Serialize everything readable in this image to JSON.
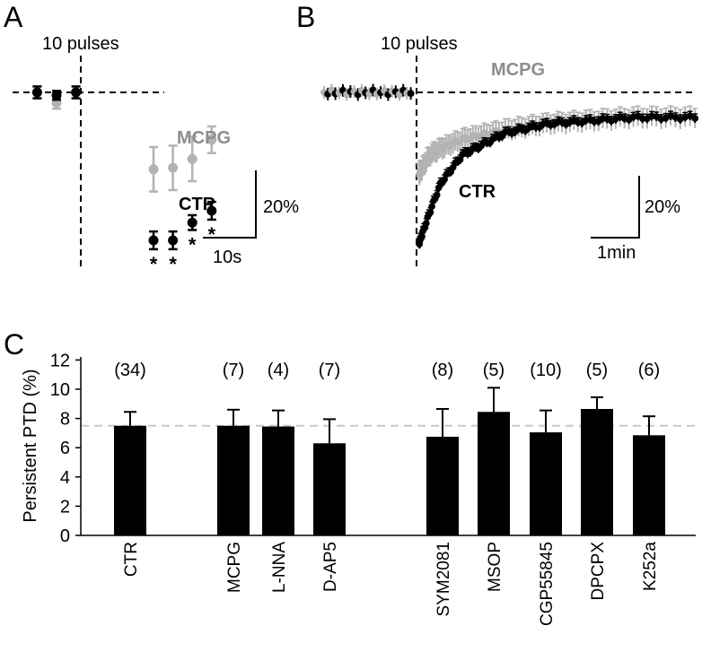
{
  "panel_labels": {
    "a": "A",
    "b": "B",
    "c": "C"
  },
  "colors": {
    "ctr": "#000000",
    "mcpg": "#b3b3b3",
    "mcpg_label": "#8c8c8c",
    "refline": "#c8c8c8"
  },
  "chart_data": [
    {
      "id": "A",
      "type": "scatter",
      "title": "",
      "stim_label": "10 pulses",
      "xlabel": "",
      "ylabel": "",
      "ylim": [
        -55,
        5
      ],
      "baseline": 0,
      "scalebar": {
        "x_label": "10s",
        "y_label": "20%"
      },
      "series": [
        {
          "name": "MCPG",
          "baseline_points": [
            {
              "x": -4.5,
              "y": 0,
              "err": 2
            },
            {
              "x": -2.5,
              "y": -3.5,
              "err": 2
            },
            {
              "x": -0.5,
              "y": 0,
              "err": 2
            }
          ],
          "points": [
            {
              "x": 7.5,
              "y": -26,
              "err": 7.5
            },
            {
              "x": 9.5,
              "y": -25.5,
              "err": 7.5
            },
            {
              "x": 11.5,
              "y": -22.5,
              "err": 7.5
            },
            {
              "x": 13.5,
              "y": -16,
              "err": 4.5
            }
          ]
        },
        {
          "name": "CTR",
          "baseline_points": [
            {
              "x": -4.5,
              "y": 0,
              "err": 2
            },
            {
              "x": -2.5,
              "y": -1,
              "err": 1.5
            },
            {
              "x": -0.5,
              "y": 0,
              "err": 2
            }
          ],
          "points": [
            {
              "x": 7.5,
              "y": -50,
              "err": 3
            },
            {
              "x": 9.5,
              "y": -50,
              "err": 3
            },
            {
              "x": 11.5,
              "y": -44,
              "err": 2.5
            },
            {
              "x": 13.5,
              "y": -40,
              "err": 3
            }
          ]
        }
      ],
      "significance_marks": [
        "*",
        "*",
        "*",
        "*"
      ]
    },
    {
      "id": "B",
      "type": "line",
      "title": "",
      "stim_label": "10 pulses",
      "xlabel": "",
      "ylabel": "",
      "baseline": 0,
      "scalebar": {
        "x_label": "1min",
        "y_label": "20%"
      },
      "series": [
        {
          "name": "MCPG",
          "points": [
            {
              "t": 0,
              "y": -26
            },
            {
              "t": 0.25,
              "y": -20
            },
            {
              "t": 0.5,
              "y": -18
            },
            {
              "t": 1,
              "y": -15
            },
            {
              "t": 2,
              "y": -12
            },
            {
              "t": 3,
              "y": -10
            },
            {
              "t": 4,
              "y": -9
            },
            {
              "t": 5,
              "y": -8
            }
          ]
        },
        {
          "name": "CTR",
          "points": [
            {
              "t": 0,
              "y": -48
            },
            {
              "t": 0.25,
              "y": -38
            },
            {
              "t": 0.5,
              "y": -29
            },
            {
              "t": 1,
              "y": -20
            },
            {
              "t": 2,
              "y": -13
            },
            {
              "t": 3,
              "y": -10
            },
            {
              "t": 4,
              "y": -9
            },
            {
              "t": 5,
              "y": -8
            }
          ]
        }
      ]
    },
    {
      "id": "C",
      "type": "bar",
      "title": "",
      "xlabel": "",
      "ylabel": "Persistent PTD (%)",
      "ylim": [
        0,
        12
      ],
      "yticks": [
        0,
        2,
        4,
        6,
        8,
        10,
        12
      ],
      "reference_line": 7.5,
      "categories": [
        "CTR",
        "MCPG",
        "L-NNA",
        "D-AP5",
        "SYM2081",
        "MSOP",
        "CGP55845",
        "DPCPX",
        "K252a"
      ],
      "values": [
        7.5,
        7.5,
        7.45,
        6.3,
        6.75,
        8.45,
        7.05,
        8.65,
        6.85
      ],
      "errors": [
        0.95,
        1.1,
        1.1,
        1.65,
        1.9,
        1.65,
        1.5,
        0.8,
        1.3
      ],
      "n_labels": [
        "(34)",
        "(7)",
        "(4)",
        "(7)",
        "(8)",
        "(5)",
        "(10)",
        "(5)",
        "(6)"
      ]
    }
  ]
}
